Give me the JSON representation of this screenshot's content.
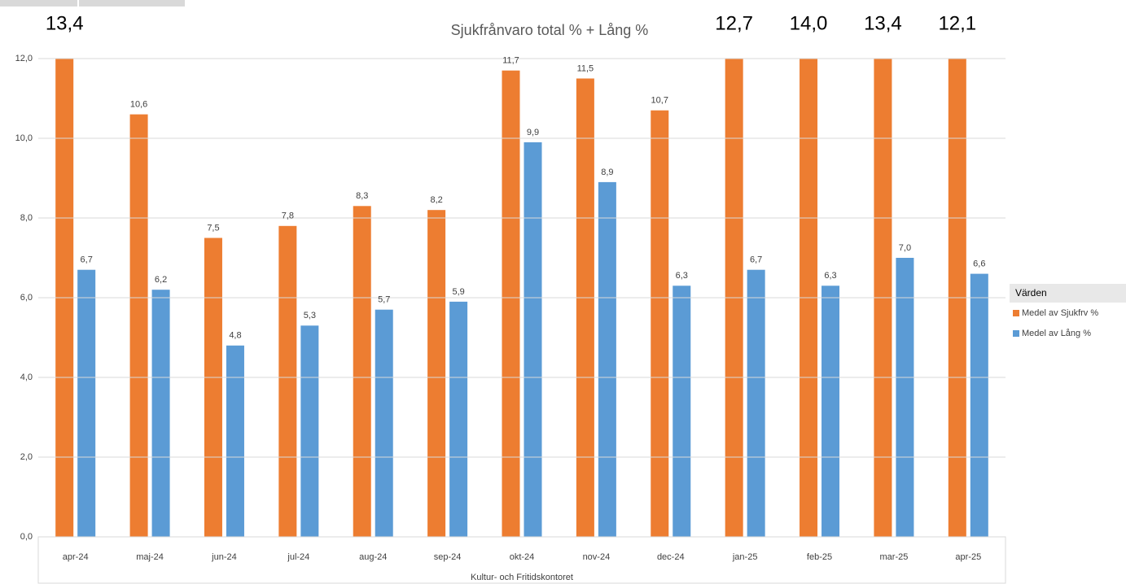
{
  "chart_data": {
    "type": "bar",
    "title": "Sjukfrånvaro total % + Lång %",
    "x_label": "Kultur- och Fritidskontoret",
    "legend_title": "Värden",
    "legend": "right",
    "grid": true,
    "categories": [
      "apr-24",
      "maj-24",
      "jun-24",
      "jul-24",
      "aug-24",
      "sep-24",
      "okt-24",
      "nov-24",
      "dec-24",
      "jan-25",
      "feb-25",
      "mar-25",
      "apr-25"
    ],
    "series": [
      {
        "name": "Medel av Sjukfrv %",
        "color": "#ed7d31",
        "values": [
          13.4,
          10.6,
          7.5,
          7.8,
          8.3,
          8.2,
          11.7,
          11.5,
          10.7,
          12.7,
          14.0,
          13.4,
          12.1
        ],
        "value_labels": [
          "13,4",
          "10,6",
          "7,5",
          "7,8",
          "8,3",
          "8,2",
          "11,7",
          "11,5",
          "10,7",
          "12,7",
          "14,0",
          "13,4",
          "12,1"
        ]
      },
      {
        "name": "Medel av Lång %",
        "color": "#5b9bd5",
        "values": [
          6.7,
          6.2,
          4.8,
          5.3,
          5.7,
          5.9,
          9.9,
          8.9,
          6.3,
          6.7,
          6.3,
          7.0,
          6.6
        ],
        "value_labels": [
          "6,7",
          "6,2",
          "4,8",
          "5,3",
          "5,7",
          "5,9",
          "9,9",
          "8,9",
          "6,3",
          "6,7",
          "6,3",
          "7,0",
          "6,6"
        ]
      }
    ],
    "ylim": [
      0,
      12
    ],
    "yticks": [
      {
        "value": 0,
        "label": "0,0"
      },
      {
        "value": 2,
        "label": "2,0"
      },
      {
        "value": 4,
        "label": "4,0"
      },
      {
        "value": 6,
        "label": "6,0"
      },
      {
        "value": 8,
        "label": "8,0"
      },
      {
        "value": 10,
        "label": "10,0"
      },
      {
        "value": 12,
        "label": "12,0"
      }
    ]
  }
}
